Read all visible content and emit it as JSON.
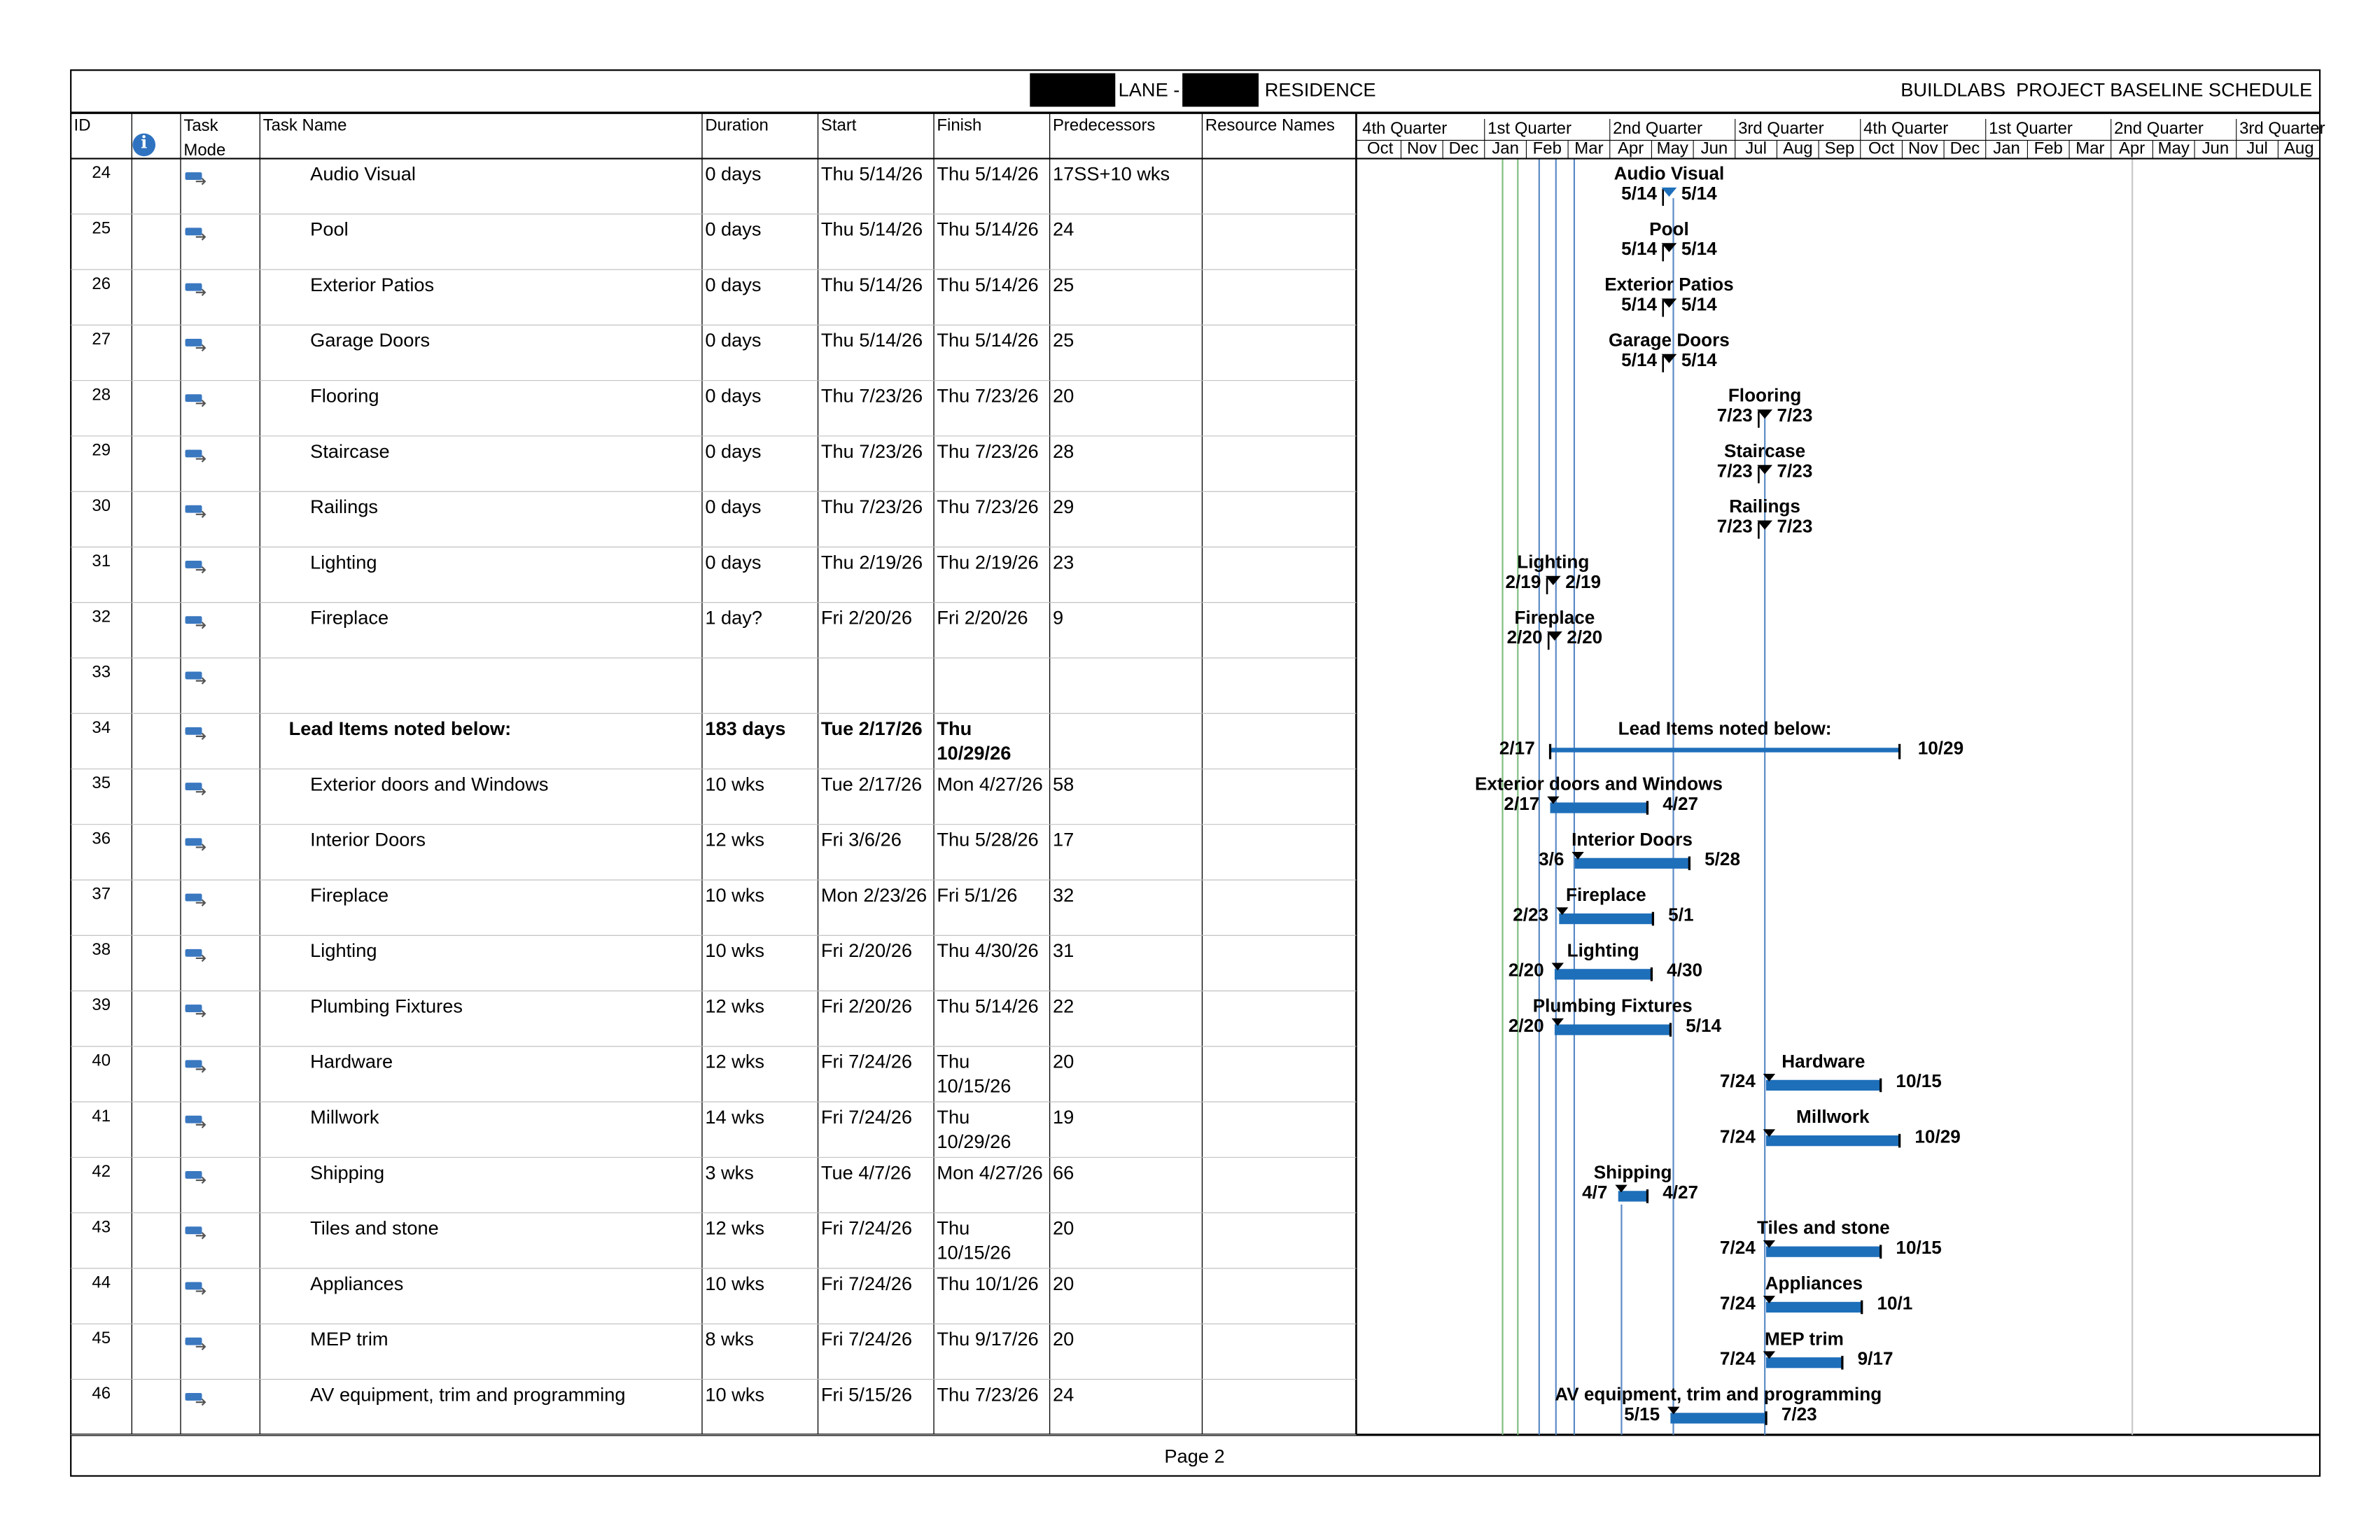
{
  "header": {
    "title_left": "LANE -",
    "title_right": "RESIDENCE",
    "schedule": "BUILDLABS  PROJECT BASELINE SCHEDULE"
  },
  "columns": [
    "ID",
    "Task Mode",
    "Task Name",
    "Duration",
    "Start",
    "Finish",
    "Predecessors",
    "Resource Names"
  ],
  "timescale": {
    "quarters": [
      "4th Quarter",
      "1st Quarter",
      "2nd Quarter",
      "3rd Quarter",
      "4th Quarter",
      "1st Quarter",
      "2nd Quarter",
      "3rd Quarter"
    ],
    "months": [
      "Oct",
      "Nov",
      "Dec",
      "Jan",
      "Feb",
      "Mar",
      "Apr",
      "May",
      "Jun",
      "Jul",
      "Aug",
      "Sep",
      "Oct",
      "Nov",
      "Dec",
      "Jan",
      "Feb",
      "Mar",
      "Apr",
      "May",
      "Jun",
      "Jul",
      "Aug"
    ]
  },
  "rows": [
    {
      "id": "24",
      "name": "Audio Visual",
      "duration": "0 days",
      "start": "Thu 5/14/26",
      "finish": "Thu 5/14/26",
      "predecessors": "17SS+10 wks",
      "bar": {
        "label": "Audio Visual",
        "start": "5/14",
        "finish": "5/14"
      }
    },
    {
      "id": "25",
      "name": "Pool",
      "duration": "0 days",
      "start": "Thu 5/14/26",
      "finish": "Thu 5/14/26",
      "predecessors": "24",
      "bar": {
        "label": "Pool",
        "start": "5/14",
        "finish": "5/14"
      }
    },
    {
      "id": "26",
      "name": "Exterior Patios",
      "duration": "0 days",
      "start": "Thu 5/14/26",
      "finish": "Thu 5/14/26",
      "predecessors": "25",
      "bar": {
        "label": "Exterior Patios",
        "start": "5/14",
        "finish": "5/14"
      }
    },
    {
      "id": "27",
      "name": "Garage Doors",
      "duration": "0 days",
      "start": "Thu 5/14/26",
      "finish": "Thu 5/14/26",
      "predecessors": "25",
      "bar": {
        "label": "Garage Doors",
        "start": "5/14",
        "finish": "5/14"
      }
    },
    {
      "id": "28",
      "name": "Flooring",
      "duration": "0 days",
      "start": "Thu 7/23/26",
      "finish": "Thu 7/23/26",
      "predecessors": "20",
      "bar": {
        "label": "Flooring",
        "start": "7/23",
        "finish": "7/23"
      }
    },
    {
      "id": "29",
      "name": "Staircase",
      "duration": "0 days",
      "start": "Thu 7/23/26",
      "finish": "Thu 7/23/26",
      "predecessors": "28",
      "bar": {
        "label": "Staircase",
        "start": "7/23",
        "finish": "7/23"
      }
    },
    {
      "id": "30",
      "name": "Railings",
      "duration": "0 days",
      "start": "Thu 7/23/26",
      "finish": "Thu 7/23/26",
      "predecessors": "29",
      "bar": {
        "label": "Railings",
        "start": "7/23",
        "finish": "7/23"
      }
    },
    {
      "id": "31",
      "name": "Lighting",
      "duration": "0 days",
      "start": "Thu 2/19/26",
      "finish": "Thu 2/19/26",
      "predecessors": "23",
      "bar": {
        "label": "Lighting",
        "start": "2/19",
        "finish": "2/19"
      }
    },
    {
      "id": "32",
      "name": "Fireplace",
      "duration": "1 day?",
      "start": "Fri 2/20/26",
      "finish": "Fri 2/20/26",
      "predecessors": "9",
      "bar": {
        "label": "Fireplace",
        "start": "2/20",
        "finish": "2/20"
      }
    },
    {
      "id": "33"
    },
    {
      "id": "34",
      "name": "Lead Items noted below:",
      "duration": "183 days",
      "start": "Tue 2/17/26",
      "finish": "Thu 10/29/26",
      "summary": true,
      "bar": {
        "label": "Lead Items noted below:",
        "start": "2/17",
        "finish": "10/29"
      }
    },
    {
      "id": "35",
      "name": "Exterior doors and Windows",
      "duration": "10 wks",
      "start": "Tue 2/17/26",
      "finish": "Mon 4/27/26",
      "predecessors": "58",
      "bar": {
        "label": "Exterior doors and Windows",
        "start": "2/17",
        "finish": "4/27"
      }
    },
    {
      "id": "36",
      "name": "Interior Doors",
      "duration": "12 wks",
      "start": "Fri 3/6/26",
      "finish": "Thu 5/28/26",
      "predecessors": "17",
      "bar": {
        "label": "Interior Doors",
        "start": "3/6",
        "finish": "5/28"
      }
    },
    {
      "id": "37",
      "name": "Fireplace",
      "duration": "10 wks",
      "start": "Mon 2/23/26",
      "finish": "Fri 5/1/26",
      "predecessors": "32",
      "bar": {
        "label": "Fireplace",
        "start": "2/23",
        "finish": "5/1"
      }
    },
    {
      "id": "38",
      "name": "Lighting",
      "duration": "10 wks",
      "start": "Fri 2/20/26",
      "finish": "Thu 4/30/26",
      "predecessors": "31",
      "bar": {
        "label": "Lighting",
        "start": "2/20",
        "finish": "4/30"
      }
    },
    {
      "id": "39",
      "name": "Plumbing Fixtures",
      "duration": "12 wks",
      "start": "Fri 2/20/26",
      "finish": "Thu 5/14/26",
      "predecessors": "22",
      "bar": {
        "label": "Plumbing Fixtures",
        "start": "2/20",
        "finish": "5/14"
      }
    },
    {
      "id": "40",
      "name": "Hardware",
      "duration": "12 wks",
      "start": "Fri 7/24/26",
      "finish": "Thu 10/15/26",
      "predecessors": "20",
      "bar": {
        "label": "Hardware",
        "start": "7/24",
        "finish": "10/15"
      }
    },
    {
      "id": "41",
      "name": "Millwork",
      "duration": "14 wks",
      "start": "Fri 7/24/26",
      "finish": "Thu 10/29/26",
      "predecessors": "19",
      "bar": {
        "label": "Millwork",
        "start": "7/24",
        "finish": "10/29"
      }
    },
    {
      "id": "42",
      "name": "Shipping",
      "duration": "3 wks",
      "start": "Tue 4/7/26",
      "finish": "Mon 4/27/26",
      "predecessors": "66",
      "bar": {
        "label": "Shipping",
        "start": "4/7",
        "finish": "4/27"
      }
    },
    {
      "id": "43",
      "name": "Tiles and stone",
      "duration": "12 wks",
      "start": "Fri 7/24/26",
      "finish": "Thu 10/15/26",
      "predecessors": "20",
      "bar": {
        "label": "Tiles and stone",
        "start": "7/24",
        "finish": "10/15"
      }
    },
    {
      "id": "44",
      "name": "Appliances",
      "duration": "10 wks",
      "start": "Fri 7/24/26",
      "finish": "Thu 10/1/26",
      "predecessors": "20",
      "bar": {
        "label": "Appliances",
        "start": "7/24",
        "finish": "10/1"
      }
    },
    {
      "id": "45",
      "name": "MEP trim",
      "duration": "8 wks",
      "start": "Fri 7/24/26",
      "finish": "Thu 9/17/26",
      "predecessors": "20",
      "bar": {
        "label": "MEP trim",
        "start": "7/24",
        "finish": "9/17"
      }
    },
    {
      "id": "46",
      "name": "AV equipment, trim and programming",
      "duration": "10 wks",
      "start": "Fri 5/15/26",
      "finish": "Thu 7/23/26",
      "predecessors": "24",
      "bar": {
        "label": "AV equipment, trim and programming",
        "start": "5/15",
        "finish": "7/23"
      }
    }
  ],
  "footer": "Page 2"
}
